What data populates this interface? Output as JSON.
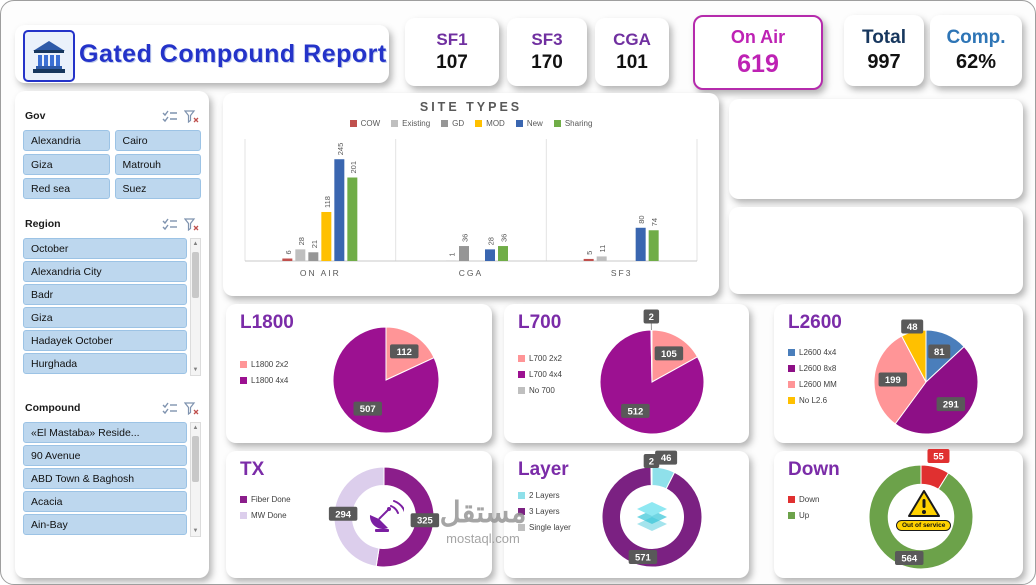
{
  "header": {
    "title": "Gated Compound Report",
    "kpis": [
      {
        "label": "SF1",
        "value": "107"
      },
      {
        "label": "SF3",
        "value": "170"
      },
      {
        "label": "CGA",
        "value": "101"
      },
      {
        "label": "On Air",
        "value": "619"
      },
      {
        "label": "Total",
        "value": "997"
      },
      {
        "label": "Comp.",
        "value": "62%"
      }
    ],
    "onair_accent": "#BE22B4"
  },
  "slicers": [
    {
      "title": "Gov",
      "columns": 2,
      "items": [
        "Alexandria",
        "Cairo",
        "Giza",
        "Matrouh",
        "Red sea",
        "Suez"
      ]
    },
    {
      "title": "Region",
      "columns": 1,
      "scrollbar": true,
      "items": [
        "October",
        "Alexandria City",
        "Badr",
        "Giza",
        "Hadayek October",
        "Hurghada"
      ]
    },
    {
      "title": "Compound",
      "columns": 1,
      "scrollbar": true,
      "items": [
        "«El Mastaba» Reside...",
        "90 Avenue",
        "ABD Town & Baghosh",
        "Acacia",
        "Ain-Bay"
      ]
    }
  ],
  "chart_data": [
    {
      "id": "site_types",
      "type": "bar",
      "title": "SITE TYPES",
      "categories": [
        "ON AIR",
        "CGA",
        "SF3"
      ],
      "series": [
        {
          "name": "COW",
          "color": "#C0504D",
          "values": [
            6,
            0,
            5
          ]
        },
        {
          "name": "Existing",
          "color": "#BFBFBF",
          "values": [
            28,
            1,
            11
          ]
        },
        {
          "name": "GD",
          "color": "#969696",
          "values": [
            21,
            36,
            0
          ]
        },
        {
          "name": "MOD",
          "color": "#FFC000",
          "values": [
            118,
            0,
            0
          ]
        },
        {
          "name": "New",
          "color": "#3A66B0",
          "values": [
            245,
            28,
            80
          ]
        },
        {
          "name": "Sharing",
          "color": "#70AD47",
          "values": [
            201,
            36,
            74
          ]
        }
      ],
      "ylim": [
        0,
        260
      ],
      "grid": false,
      "legend_position": "top"
    },
    {
      "id": "l1800",
      "type": "pie",
      "title": "L1800",
      "slices": [
        {
          "label": "L1800 2x2",
          "value": 112,
          "color": "#FF9597"
        },
        {
          "label": "L1800 4x4",
          "value": 507,
          "color": "#9C1191"
        }
      ]
    },
    {
      "id": "l700",
      "type": "pie",
      "title": "L700",
      "slices": [
        {
          "label": "L700 2x2",
          "value": 105,
          "color": "#FF9597"
        },
        {
          "label": "L700 4x4",
          "value": 512,
          "color": "#9C1191"
        },
        {
          "label": "No 700",
          "value": 2,
          "color": "#BFBFBF"
        }
      ]
    },
    {
      "id": "l2600",
      "type": "pie",
      "title": "L2600",
      "slices": [
        {
          "label": "L2600 4x4",
          "value": 81,
          "color": "#4A7EBB"
        },
        {
          "label": "L2600 8x8",
          "value": 291,
          "color": "#8D0F86"
        },
        {
          "label": "L2600 MM",
          "value": 199,
          "color": "#FF9597"
        },
        {
          "label": "No L2.6",
          "value": 48,
          "color": "#FFC000"
        }
      ]
    },
    {
      "id": "tx",
      "type": "donut",
      "title": "TX",
      "slices": [
        {
          "label": "Fiber Done",
          "value": 325,
          "color": "#8B1E8B"
        },
        {
          "label": "MW Done",
          "value": 294,
          "color": "#DCCEEC"
        }
      ]
    },
    {
      "id": "layer",
      "type": "donut",
      "title": "Layer",
      "slices": [
        {
          "label": "2 Layers",
          "value": 46,
          "color": "#8FE0EA"
        },
        {
          "label": "3 Layers",
          "value": 571,
          "color": "#7B2182"
        },
        {
          "label": "Single layer",
          "value": 2,
          "color": "#BFBFBF"
        }
      ]
    },
    {
      "id": "down",
      "type": "donut",
      "title": "Down",
      "slices": [
        {
          "label": "Down",
          "value": 55,
          "color": "#E03030",
          "label_bg": "#E03030"
        },
        {
          "label": "Up",
          "value": 564,
          "color": "#6CA24A"
        }
      ]
    }
  ],
  "badges": {
    "out_of_service": "Out of service"
  },
  "watermark": {
    "arabic": "مستقل",
    "domain": "mostaql.com"
  }
}
